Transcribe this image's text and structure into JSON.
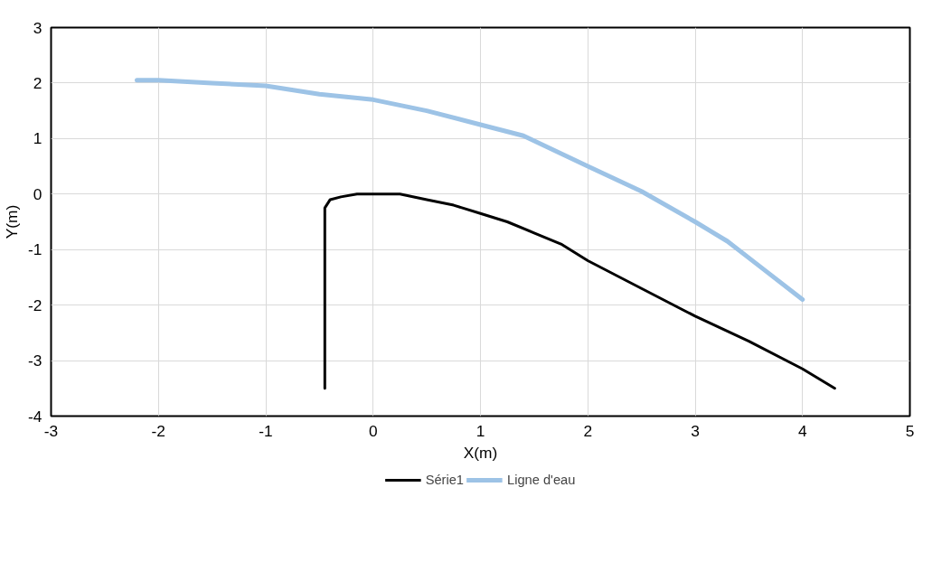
{
  "chart_data": {
    "type": "line",
    "xlabel": "X(m)",
    "ylabel": "Y(m)",
    "xlim": [
      -3,
      5
    ],
    "ylim": [
      -4,
      3
    ],
    "xticks": [
      -3,
      -2,
      -1,
      0,
      1,
      2,
      3,
      4,
      5
    ],
    "yticks": [
      -4,
      -3,
      -2,
      -1,
      0,
      1,
      2,
      3
    ],
    "grid": true,
    "legend": "bottom",
    "series": [
      {
        "name": "Série1",
        "color": "#000000",
        "x": [
          -0.45,
          -0.45,
          -0.4,
          -0.3,
          -0.15,
          0,
          0.25,
          0.5,
          0.75,
          1,
          1.25,
          1.5,
          1.75,
          2,
          2.5,
          3,
          3.5,
          4,
          4.3
        ],
        "values": [
          -3.5,
          -0.25,
          -0.1,
          -0.05,
          0,
          0,
          0,
          -0.1,
          -0.2,
          -0.35,
          -0.5,
          -0.7,
          -0.9,
          -1.2,
          -1.7,
          -2.2,
          -2.65,
          -3.15,
          -3.5
        ]
      },
      {
        "name": "Ligne d'eau",
        "color": "#9dc3e6",
        "x": [
          -2.2,
          -2,
          -1.5,
          -1,
          -0.5,
          0,
          0.5,
          1,
          1.4,
          2,
          2.5,
          3,
          3.3,
          3.6,
          4
        ],
        "values": [
          2.05,
          2.05,
          2.0,
          1.95,
          1.8,
          1.7,
          1.5,
          1.25,
          1.05,
          0.5,
          0.05,
          -0.5,
          -0.85,
          -1.3,
          -1.9
        ]
      }
    ]
  }
}
